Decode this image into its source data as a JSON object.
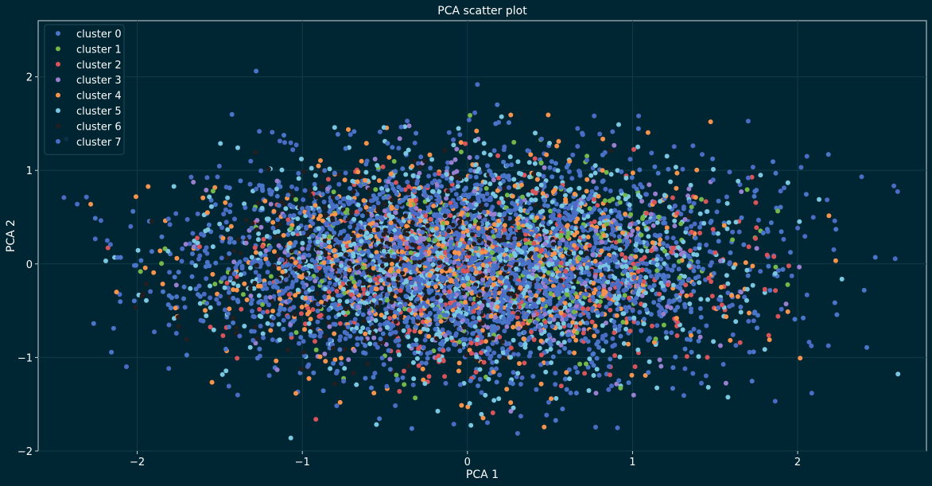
{
  "chart_data": {
    "type": "scatter",
    "title": "PCA scatter plot",
    "xlabel": "PCA 1",
    "ylabel": "PCA 2",
    "xlim": [
      -2.6,
      2.78
    ],
    "ylim": [
      -2.0,
      2.6
    ],
    "xticks": [
      -2,
      -1,
      0,
      1,
      2
    ],
    "yticks": [
      -2,
      -1,
      0,
      1,
      2
    ],
    "grid": true,
    "legend_position": "top-left",
    "background": "#002633",
    "grid_color": "#0f3c48",
    "series": [
      {
        "name": "cluster 0",
        "color": "#4a76c9",
        "count": 1300,
        "mean": [
          0.0,
          0.0
        ],
        "std": [
          0.8,
          0.55
        ],
        "seed": 11
      },
      {
        "name": "cluster 1",
        "color": "#74b84a",
        "count": 280,
        "mean": [
          0.05,
          0.05
        ],
        "std": [
          0.75,
          0.5
        ],
        "seed": 23
      },
      {
        "name": "cluster 2",
        "color": "#d9535a",
        "count": 420,
        "mean": [
          0.15,
          -0.05
        ],
        "std": [
          0.75,
          0.55
        ],
        "seed": 37
      },
      {
        "name": "cluster 3",
        "color": "#9a7fd0",
        "count": 380,
        "mean": [
          0.05,
          0.0
        ],
        "std": [
          0.75,
          0.55
        ],
        "seed": 41
      },
      {
        "name": "cluster 4",
        "color": "#f7934c",
        "count": 700,
        "mean": [
          0.0,
          0.0
        ],
        "std": [
          0.8,
          0.58
        ],
        "seed": 53
      },
      {
        "name": "cluster 5",
        "color": "#7ac7e2",
        "count": 1100,
        "mean": [
          0.05,
          0.0
        ],
        "std": [
          0.75,
          0.55
        ],
        "seed": 67
      },
      {
        "name": "cluster 6",
        "color": "#231f20",
        "count": 750,
        "mean": [
          -0.3,
          0.0
        ],
        "std": [
          0.55,
          0.45
        ],
        "seed": 79
      },
      {
        "name": "cluster 7",
        "color": "#4a6cc4",
        "count": 1500,
        "mean": [
          0.0,
          0.0
        ],
        "std": [
          0.85,
          0.58
        ],
        "seed": 97
      }
    ]
  }
}
